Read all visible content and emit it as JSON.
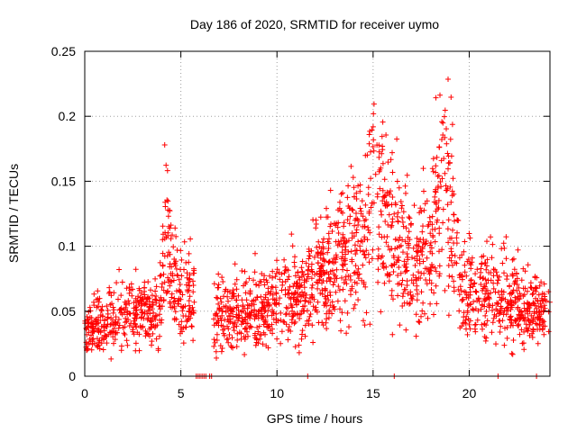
{
  "chart_data": {
    "type": "scatter",
    "title": "Day 186 of 2020, SRMTID for receiver uymo",
    "xlabel": "GPS time / hours",
    "ylabel": "SRMTID / TECUs",
    "xlim": [
      0,
      24.2
    ],
    "ylim": [
      0,
      0.25
    ],
    "grid": true,
    "legend": "none",
    "x_ticks": [
      0,
      5,
      10,
      15,
      20
    ],
    "x_tick_labels": [
      "0",
      "5",
      "10",
      "15",
      "20"
    ],
    "y_ticks": [
      0,
      0.05,
      0.1,
      0.15,
      0.2,
      0.25
    ],
    "y_tick_labels": [
      "0",
      "0.05",
      "0.1",
      "0.15",
      "0.2",
      "0.25"
    ],
    "marker": "+",
    "color": "#ff0000",
    "series": [
      {
        "name": "SRMTID",
        "description_of_trend": [
          {
            "x": 0.0,
            "y": 0.03
          },
          {
            "x": 0.5,
            "y": 0.04
          },
          {
            "x": 1.0,
            "y": 0.038
          },
          {
            "x": 1.5,
            "y": 0.042
          },
          {
            "x": 2.0,
            "y": 0.045
          },
          {
            "x": 2.5,
            "y": 0.05
          },
          {
            "x": 3.0,
            "y": 0.048
          },
          {
            "x": 3.5,
            "y": 0.046
          },
          {
            "x": 4.0,
            "y": 0.06
          },
          {
            "x": 4.2,
            "y": 0.12
          },
          {
            "x": 4.5,
            "y": 0.08
          },
          {
            "x": 5.0,
            "y": 0.055
          },
          {
            "x": 5.5,
            "y": 0.06
          },
          {
            "x": 6.8,
            "y": 0.045
          },
          {
            "x": 7.5,
            "y": 0.048
          },
          {
            "x": 8.5,
            "y": 0.05
          },
          {
            "x": 9.5,
            "y": 0.052
          },
          {
            "x": 10.5,
            "y": 0.058
          },
          {
            "x": 11.5,
            "y": 0.065
          },
          {
            "x": 12.5,
            "y": 0.075
          },
          {
            "x": 13.5,
            "y": 0.09
          },
          {
            "x": 14.5,
            "y": 0.11
          },
          {
            "x": 15.0,
            "y": 0.16
          },
          {
            "x": 15.5,
            "y": 0.12
          },
          {
            "x": 16.0,
            "y": 0.11
          },
          {
            "x": 16.5,
            "y": 0.1
          },
          {
            "x": 17.0,
            "y": 0.08
          },
          {
            "x": 17.5,
            "y": 0.085
          },
          {
            "x": 18.0,
            "y": 0.09
          },
          {
            "x": 18.7,
            "y": 0.17
          },
          {
            "x": 19.5,
            "y": 0.075
          },
          {
            "x": 20.0,
            "y": 0.065
          },
          {
            "x": 21.0,
            "y": 0.062
          },
          {
            "x": 22.0,
            "y": 0.058
          },
          {
            "x": 23.0,
            "y": 0.052
          },
          {
            "x": 24.0,
            "y": 0.048
          }
        ]
      }
    ],
    "zero_points_x": [
      5.8,
      5.9,
      6.0,
      6.1,
      6.2,
      6.3,
      6.5,
      6.6,
      11.6,
      16.1,
      21.5,
      23.5
    ]
  }
}
